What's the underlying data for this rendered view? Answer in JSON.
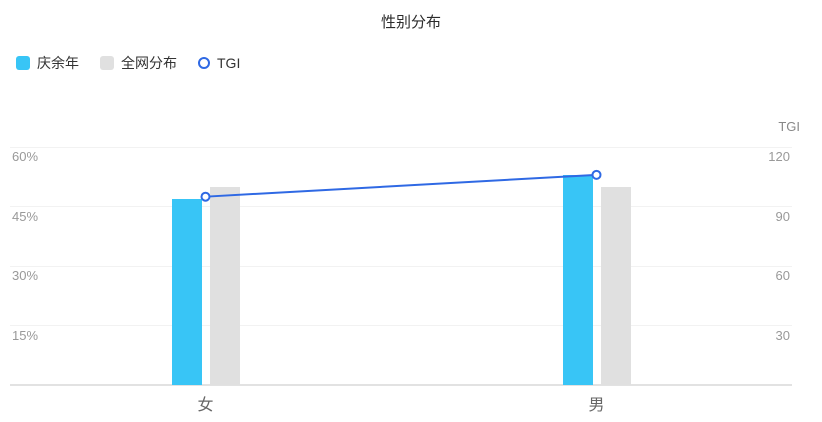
{
  "title": "性别分布",
  "legend": {
    "items": [
      {
        "label": "庆余年",
        "shape": "square",
        "color": "#38c5f6"
      },
      {
        "label": "全网分布",
        "shape": "square",
        "color": "#e0e0e0"
      },
      {
        "label": "TGI",
        "shape": "circle",
        "color": "#2f69e4"
      }
    ]
  },
  "colors": {
    "primary_bar": "#38c5f6",
    "secondary_bar": "#e0e0e0",
    "line": "#2f69e4",
    "gridline": "#f2f2f2",
    "axis_line": "#e2e2e2",
    "tick_text": "#999999",
    "category_text": "#666666",
    "title_text": "#2b2b2b"
  },
  "chart_data": {
    "type": "bar",
    "subtype": "grouped-bar-with-line",
    "title": "性别分布",
    "categories": [
      "女",
      "男"
    ],
    "series": [
      {
        "name": "庆余年",
        "type": "bar",
        "axis": "left",
        "values": [
          47,
          53
        ],
        "color": "#38c5f6"
      },
      {
        "name": "全网分布",
        "type": "bar",
        "axis": "left",
        "values": [
          50,
          50
        ],
        "color": "#e0e0e0"
      },
      {
        "name": "TGI",
        "type": "line",
        "axis": "right",
        "values": [
          95,
          106
        ],
        "color": "#2f69e4"
      }
    ],
    "left_axis": {
      "unit": "%",
      "min": 0,
      "max": 60,
      "ticks": [
        15,
        30,
        45,
        60
      ],
      "labels": [
        "15%",
        "30%",
        "45%",
        "60%"
      ]
    },
    "right_axis": {
      "name": "TGI",
      "min": 0,
      "max": 120,
      "ticks": [
        30,
        60,
        90,
        120
      ],
      "labels": [
        "30",
        "60",
        "90",
        "120"
      ]
    },
    "grid": true,
    "legend_position": "top-left"
  }
}
